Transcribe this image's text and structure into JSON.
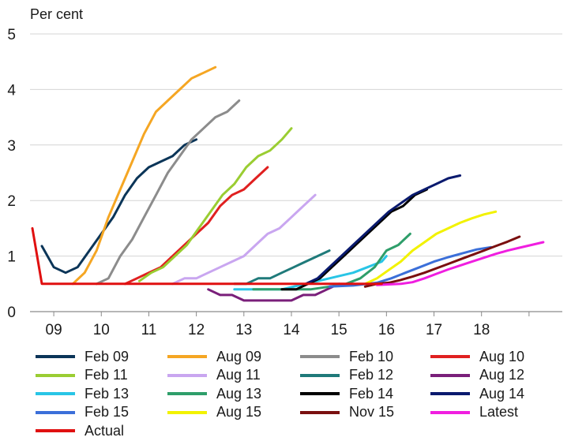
{
  "chart_data": {
    "type": "line",
    "ylabel": "Per cent",
    "ylim": [
      0,
      5
    ],
    "yticks": [
      0,
      1,
      2,
      3,
      4,
      5
    ],
    "xlim": [
      2008.5,
      2019.7
    ],
    "x_ticks": [
      "09",
      "10",
      "11",
      "12",
      "13",
      "14",
      "15",
      "16",
      "17",
      "18"
    ],
    "x_tick_values": [
      2009,
      2010,
      2011,
      2012,
      2013,
      2014,
      2015,
      2016,
      2017,
      2018
    ],
    "grid": "horizontal",
    "legend_position": "bottom",
    "series": [
      {
        "name": "Feb 09",
        "color": "#0b3558",
        "points": [
          [
            2008.75,
            1.18
          ],
          [
            2009.0,
            0.8
          ],
          [
            2009.25,
            0.7
          ],
          [
            2009.5,
            0.8
          ],
          [
            2009.75,
            1.1
          ],
          [
            2010.0,
            1.4
          ],
          [
            2010.25,
            1.7
          ],
          [
            2010.5,
            2.1
          ],
          [
            2010.75,
            2.4
          ],
          [
            2011.0,
            2.6
          ],
          [
            2011.25,
            2.7
          ],
          [
            2011.5,
            2.8
          ],
          [
            2011.75,
            3.0
          ],
          [
            2012.0,
            3.1
          ]
        ]
      },
      {
        "name": "Aug 09",
        "color": "#f5a623",
        "points": [
          [
            2009.4,
            0.5
          ],
          [
            2009.65,
            0.7
          ],
          [
            2009.9,
            1.1
          ],
          [
            2010.15,
            1.7
          ],
          [
            2010.4,
            2.2
          ],
          [
            2010.65,
            2.7
          ],
          [
            2010.9,
            3.2
          ],
          [
            2011.15,
            3.6
          ],
          [
            2011.4,
            3.8
          ],
          [
            2011.65,
            4.0
          ],
          [
            2011.9,
            4.2
          ],
          [
            2012.15,
            4.3
          ],
          [
            2012.4,
            4.4
          ]
        ]
      },
      {
        "name": "Feb 10",
        "color": "#8c8c8c",
        "points": [
          [
            2009.9,
            0.5
          ],
          [
            2010.15,
            0.6
          ],
          [
            2010.4,
            1.0
          ],
          [
            2010.65,
            1.3
          ],
          [
            2010.9,
            1.7
          ],
          [
            2011.15,
            2.1
          ],
          [
            2011.4,
            2.5
          ],
          [
            2011.65,
            2.8
          ],
          [
            2011.9,
            3.1
          ],
          [
            2012.15,
            3.3
          ],
          [
            2012.4,
            3.5
          ],
          [
            2012.65,
            3.6
          ],
          [
            2012.9,
            3.8
          ]
        ]
      },
      {
        "name": "Aug 10",
        "color": "#e02020",
        "points": [
          [
            2010.5,
            0.5
          ],
          [
            2010.75,
            0.6
          ],
          [
            2011.0,
            0.7
          ],
          [
            2011.25,
            0.8
          ],
          [
            2011.5,
            1.0
          ],
          [
            2011.75,
            1.2
          ],
          [
            2012.0,
            1.4
          ],
          [
            2012.25,
            1.6
          ],
          [
            2012.5,
            1.9
          ],
          [
            2012.75,
            2.1
          ],
          [
            2013.0,
            2.2
          ],
          [
            2013.25,
            2.4
          ],
          [
            2013.5,
            2.6
          ]
        ]
      },
      {
        "name": "Feb 11",
        "color": "#9acd32",
        "points": [
          [
            2010.8,
            0.55
          ],
          [
            2011.05,
            0.7
          ],
          [
            2011.3,
            0.8
          ],
          [
            2011.55,
            1.0
          ],
          [
            2011.8,
            1.2
          ],
          [
            2012.05,
            1.5
          ],
          [
            2012.3,
            1.8
          ],
          [
            2012.55,
            2.1
          ],
          [
            2012.8,
            2.3
          ],
          [
            2013.05,
            2.6
          ],
          [
            2013.3,
            2.8
          ],
          [
            2013.55,
            2.9
          ],
          [
            2013.8,
            3.1
          ],
          [
            2014.0,
            3.3
          ]
        ]
      },
      {
        "name": "Aug 11",
        "color": "#c9a6f0",
        "points": [
          [
            2011.5,
            0.5
          ],
          [
            2011.75,
            0.6
          ],
          [
            2012.0,
            0.6
          ],
          [
            2012.25,
            0.7
          ],
          [
            2012.5,
            0.8
          ],
          [
            2012.75,
            0.9
          ],
          [
            2013.0,
            1.0
          ],
          [
            2013.25,
            1.2
          ],
          [
            2013.5,
            1.4
          ],
          [
            2013.75,
            1.5
          ],
          [
            2014.0,
            1.7
          ],
          [
            2014.25,
            1.9
          ],
          [
            2014.5,
            2.1
          ]
        ]
      },
      {
        "name": "Feb 12",
        "color": "#1f7a7a",
        "points": [
          [
            2012.8,
            0.5
          ],
          [
            2013.05,
            0.5
          ],
          [
            2013.3,
            0.6
          ],
          [
            2013.55,
            0.6
          ],
          [
            2013.8,
            0.7
          ],
          [
            2014.05,
            0.8
          ],
          [
            2014.3,
            0.9
          ],
          [
            2014.55,
            1.0
          ],
          [
            2014.8,
            1.1
          ]
        ]
      },
      {
        "name": "Aug 12",
        "color": "#7a1f7a",
        "points": [
          [
            2012.25,
            0.4
          ],
          [
            2012.5,
            0.3
          ],
          [
            2012.75,
            0.3
          ],
          [
            2013.0,
            0.2
          ],
          [
            2013.25,
            0.2
          ],
          [
            2013.5,
            0.2
          ],
          [
            2013.75,
            0.2
          ],
          [
            2014.0,
            0.2
          ],
          [
            2014.25,
            0.3
          ],
          [
            2014.5,
            0.3
          ],
          [
            2014.75,
            0.4
          ],
          [
            2015.0,
            0.5
          ]
        ]
      },
      {
        "name": "Feb 13",
        "color": "#29c5e6",
        "points": [
          [
            2012.8,
            0.4
          ],
          [
            2013.3,
            0.4
          ],
          [
            2013.8,
            0.4
          ],
          [
            2014.3,
            0.5
          ],
          [
            2014.8,
            0.6
          ],
          [
            2015.3,
            0.7
          ],
          [
            2015.6,
            0.8
          ],
          [
            2015.9,
            0.9
          ],
          [
            2016.0,
            1.0
          ]
        ]
      },
      {
        "name": "Aug 13",
        "color": "#2e9e6a",
        "points": [
          [
            2013.2,
            0.4
          ],
          [
            2013.6,
            0.4
          ],
          [
            2014.0,
            0.4
          ],
          [
            2014.4,
            0.4
          ],
          [
            2014.8,
            0.45
          ],
          [
            2015.15,
            0.5
          ],
          [
            2015.45,
            0.6
          ],
          [
            2015.75,
            0.8
          ],
          [
            2016.0,
            1.1
          ],
          [
            2016.25,
            1.2
          ],
          [
            2016.5,
            1.4
          ]
        ]
      },
      {
        "name": "Feb 14",
        "color": "#000000",
        "points": [
          [
            2013.8,
            0.4
          ],
          [
            2014.1,
            0.4
          ],
          [
            2014.35,
            0.5
          ],
          [
            2014.6,
            0.6
          ],
          [
            2014.85,
            0.8
          ],
          [
            2015.1,
            1.0
          ],
          [
            2015.35,
            1.2
          ],
          [
            2015.6,
            1.4
          ],
          [
            2015.85,
            1.6
          ],
          [
            2016.1,
            1.8
          ],
          [
            2016.35,
            1.9
          ],
          [
            2016.6,
            2.1
          ],
          [
            2016.85,
            2.2
          ]
        ]
      },
      {
        "name": "Aug 14",
        "color": "#0a1a6e",
        "points": [
          [
            2014.3,
            0.5
          ],
          [
            2014.55,
            0.6
          ],
          [
            2014.8,
            0.8
          ],
          [
            2015.05,
            1.0
          ],
          [
            2015.3,
            1.2
          ],
          [
            2015.55,
            1.4
          ],
          [
            2015.8,
            1.6
          ],
          [
            2016.05,
            1.8
          ],
          [
            2016.3,
            1.95
          ],
          [
            2016.55,
            2.1
          ],
          [
            2016.8,
            2.2
          ],
          [
            2017.05,
            2.3
          ],
          [
            2017.3,
            2.4
          ],
          [
            2017.55,
            2.45
          ]
        ]
      },
      {
        "name": "Feb 15",
        "color": "#3b6fd9",
        "points": [
          [
            2014.8,
            0.45
          ],
          [
            2015.3,
            0.47
          ],
          [
            2015.8,
            0.52
          ],
          [
            2016.1,
            0.6
          ],
          [
            2016.4,
            0.7
          ],
          [
            2016.7,
            0.8
          ],
          [
            2017.0,
            0.9
          ],
          [
            2017.3,
            0.98
          ],
          [
            2017.6,
            1.05
          ],
          [
            2017.9,
            1.12
          ],
          [
            2018.2,
            1.16
          ]
        ]
      },
      {
        "name": "Aug 15",
        "color": "#f2f200",
        "points": [
          [
            2015.55,
            0.5
          ],
          [
            2015.8,
            0.6
          ],
          [
            2016.05,
            0.75
          ],
          [
            2016.3,
            0.9
          ],
          [
            2016.55,
            1.1
          ],
          [
            2016.8,
            1.25
          ],
          [
            2017.05,
            1.4
          ],
          [
            2017.3,
            1.5
          ],
          [
            2017.55,
            1.6
          ],
          [
            2017.8,
            1.68
          ],
          [
            2018.05,
            1.75
          ],
          [
            2018.3,
            1.8
          ]
        ]
      },
      {
        "name": "Nov 15",
        "color": "#7a0f0f",
        "points": [
          [
            2015.55,
            0.45
          ],
          [
            2015.8,
            0.5
          ],
          [
            2016.05,
            0.52
          ],
          [
            2016.3,
            0.57
          ],
          [
            2016.55,
            0.63
          ],
          [
            2016.8,
            0.7
          ],
          [
            2017.05,
            0.78
          ],
          [
            2017.3,
            0.86
          ],
          [
            2017.55,
            0.94
          ],
          [
            2017.8,
            1.02
          ],
          [
            2018.05,
            1.1
          ],
          [
            2018.3,
            1.18
          ],
          [
            2018.55,
            1.26
          ],
          [
            2018.8,
            1.35
          ]
        ]
      },
      {
        "name": "Latest",
        "color": "#f01ee0",
        "points": [
          [
            2015.8,
            0.48
          ],
          [
            2016.05,
            0.49
          ],
          [
            2016.3,
            0.5
          ],
          [
            2016.55,
            0.53
          ],
          [
            2016.8,
            0.6
          ],
          [
            2017.05,
            0.68
          ],
          [
            2017.3,
            0.76
          ],
          [
            2017.55,
            0.83
          ],
          [
            2017.8,
            0.9
          ],
          [
            2018.05,
            0.97
          ],
          [
            2018.3,
            1.04
          ],
          [
            2018.55,
            1.1
          ],
          [
            2018.8,
            1.15
          ],
          [
            2019.05,
            1.2
          ],
          [
            2019.3,
            1.25
          ]
        ]
      },
      {
        "name": "Actual",
        "color": "#e01010",
        "points": [
          [
            2008.55,
            1.5
          ],
          [
            2008.75,
            0.5
          ],
          [
            2009.5,
            0.5
          ],
          [
            2010.5,
            0.5
          ],
          [
            2011.5,
            0.5
          ],
          [
            2012.5,
            0.5
          ],
          [
            2013.5,
            0.5
          ],
          [
            2014.5,
            0.5
          ],
          [
            2015.5,
            0.5
          ],
          [
            2015.9,
            0.5
          ]
        ]
      }
    ]
  }
}
